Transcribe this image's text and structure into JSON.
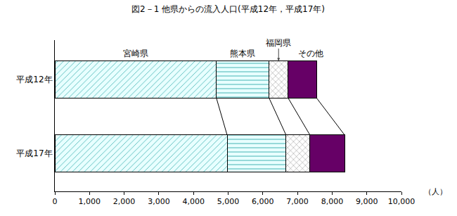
{
  "chart_data": {
    "type": "bar",
    "orientation": "horizontal",
    "stacked": true,
    "title": "図2－1 他県からの流入人口(平成12年，平成17年)",
    "xlabel": "（人）",
    "categories": [
      "平成12年",
      "平成17年"
    ],
    "series": [
      {
        "name": "宮崎県",
        "color": "#e8ffff",
        "marker": "diagonal",
        "values": [
          4660,
          4970
        ]
      },
      {
        "name": "熊本県",
        "color": "#e8ffff",
        "marker": "horizontal",
        "values": [
          1520,
          1700
        ]
      },
      {
        "name": "福岡県",
        "color": "#ffffff",
        "marker": "cross",
        "values": [
          550,
          690
        ]
      },
      {
        "name": "その他",
        "color": "#660066",
        "marker": "solid",
        "values": [
          820,
          1000
        ]
      }
    ],
    "xlim": [
      0,
      10000
    ],
    "xticks": [
      0,
      {
        "value": 1000,
        "label": "1,000"
      },
      {
        "value": 2000,
        "label": "2,000"
      },
      {
        "value": 3000,
        "label": "3,000"
      },
      {
        "value": 4000,
        "label": "4,000"
      },
      {
        "value": 5000,
        "label": "5,000"
      },
      {
        "value": 6000,
        "label": "6,000"
      },
      {
        "value": 7000,
        "label": "7,000"
      },
      {
        "value": 8000,
        "label": "8,000"
      },
      {
        "value": 9000,
        "label": "9,000"
      },
      {
        "value": 10000,
        "label": "10,000"
      }
    ],
    "grid": false
  }
}
